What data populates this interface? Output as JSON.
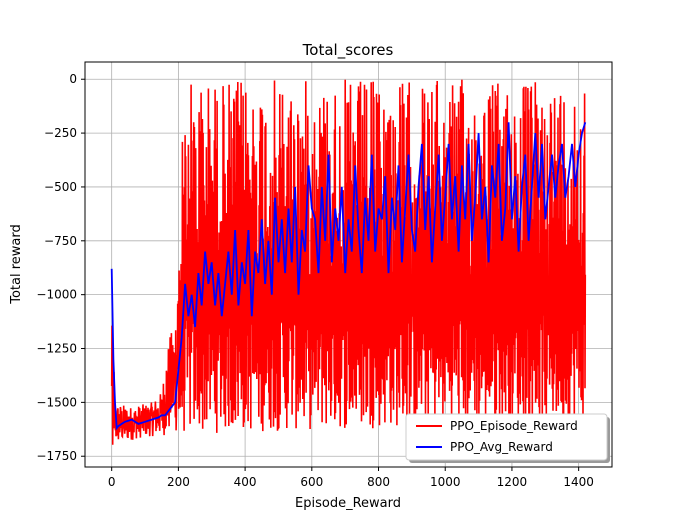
{
  "chart_data": {
    "type": "line",
    "title": "Total_scores",
    "xlabel": "Episode_Reward",
    "ylabel": "Total reward",
    "xlim": [
      -80,
      1500
    ],
    "ylim": [
      -1800,
      80
    ],
    "xticks": [
      0,
      200,
      400,
      600,
      800,
      1000,
      1200,
      1400
    ],
    "yticks": [
      0,
      -250,
      -500,
      -750,
      -1000,
      -1250,
      -1500,
      -1750
    ],
    "grid": true,
    "legend_position": "lower right",
    "series": [
      {
        "name": "PPO_Episode_Reward",
        "color": "#ff0000",
        "style": "volatile",
        "x_range": [
          0,
          1420
        ],
        "envelope_high": [
          [
            0,
            -880
          ],
          [
            10,
            -1500
          ],
          [
            60,
            -1520
          ],
          [
            120,
            -1500
          ],
          [
            150,
            -1450
          ],
          [
            165,
            -1250
          ],
          [
            190,
            -1100
          ],
          [
            205,
            -500
          ],
          [
            215,
            -150
          ],
          [
            230,
            0
          ],
          [
            500,
            0
          ],
          [
            1000,
            0
          ],
          [
            1420,
            0
          ]
        ],
        "envelope_low": [
          [
            0,
            -1700
          ],
          [
            100,
            -1660
          ],
          [
            200,
            -1650
          ],
          [
            400,
            -1640
          ],
          [
            600,
            -1630
          ],
          [
            800,
            -1620
          ],
          [
            1000,
            -1610
          ],
          [
            1200,
            -1600
          ],
          [
            1420,
            -1600
          ]
        ]
      },
      {
        "name": "PPO_Avg_Reward",
        "color": "#0000ff",
        "x": [
          0,
          5,
          10,
          15,
          20,
          30,
          40,
          60,
          80,
          100,
          120,
          140,
          150,
          160,
          170,
          180,
          190,
          200,
          210,
          220,
          230,
          240,
          250,
          260,
          270,
          280,
          290,
          300,
          310,
          320,
          330,
          340,
          350,
          360,
          370,
          380,
          390,
          400,
          410,
          420,
          430,
          440,
          450,
          460,
          470,
          480,
          490,
          500,
          510,
          520,
          530,
          540,
          550,
          560,
          570,
          580,
          590,
          600,
          610,
          620,
          630,
          640,
          650,
          660,
          670,
          680,
          690,
          700,
          710,
          720,
          730,
          740,
          750,
          760,
          770,
          780,
          790,
          800,
          810,
          820,
          830,
          840,
          850,
          860,
          870,
          880,
          890,
          900,
          910,
          920,
          930,
          940,
          950,
          960,
          970,
          980,
          990,
          1000,
          1010,
          1020,
          1030,
          1040,
          1050,
          1060,
          1070,
          1080,
          1090,
          1100,
          1110,
          1120,
          1130,
          1140,
          1150,
          1160,
          1170,
          1180,
          1190,
          1200,
          1210,
          1220,
          1230,
          1240,
          1250,
          1260,
          1270,
          1280,
          1290,
          1300,
          1310,
          1320,
          1330,
          1340,
          1350,
          1360,
          1370,
          1380,
          1390,
          1400,
          1410,
          1420
        ],
        "values": [
          -880,
          -1300,
          -1500,
          -1620,
          -1610,
          -1600,
          -1590,
          -1580,
          -1600,
          -1590,
          -1580,
          -1570,
          -1560,
          -1560,
          -1540,
          -1520,
          -1500,
          -1350,
          -1200,
          -950,
          -1100,
          -1000,
          -1150,
          -900,
          -1050,
          -800,
          -950,
          -850,
          -1050,
          -900,
          -1100,
          -950,
          -800,
          -1000,
          -700,
          -1050,
          -850,
          -950,
          -700,
          -1100,
          -800,
          -900,
          -650,
          -950,
          -750,
          -1000,
          -550,
          -850,
          -650,
          -900,
          -600,
          -850,
          -500,
          -1000,
          -700,
          -800,
          -400,
          -600,
          -650,
          -900,
          -500,
          -750,
          -350,
          -850,
          -600,
          -750,
          -500,
          -900,
          -650,
          -800,
          -400,
          -700,
          -900,
          -550,
          -750,
          -350,
          -800,
          -600,
          -650,
          -450,
          -900,
          -550,
          -700,
          -400,
          -850,
          -600,
          -350,
          -700,
          -800,
          -500,
          -300,
          -700,
          -450,
          -850,
          -600,
          -350,
          -750,
          -550,
          -300,
          -650,
          -450,
          -800,
          -400,
          -650,
          -300,
          -750,
          -550,
          -250,
          -650,
          -500,
          -850,
          -400,
          -550,
          -300,
          -750,
          -600,
          -200,
          -650,
          -450,
          -800,
          -500,
          -350,
          -750,
          -500,
          -250,
          -550,
          -300,
          -650,
          -500,
          -350,
          -550,
          -400,
          -300,
          -550,
          -450,
          -300,
          -500,
          -350,
          -250,
          -200
        ]
      }
    ]
  }
}
